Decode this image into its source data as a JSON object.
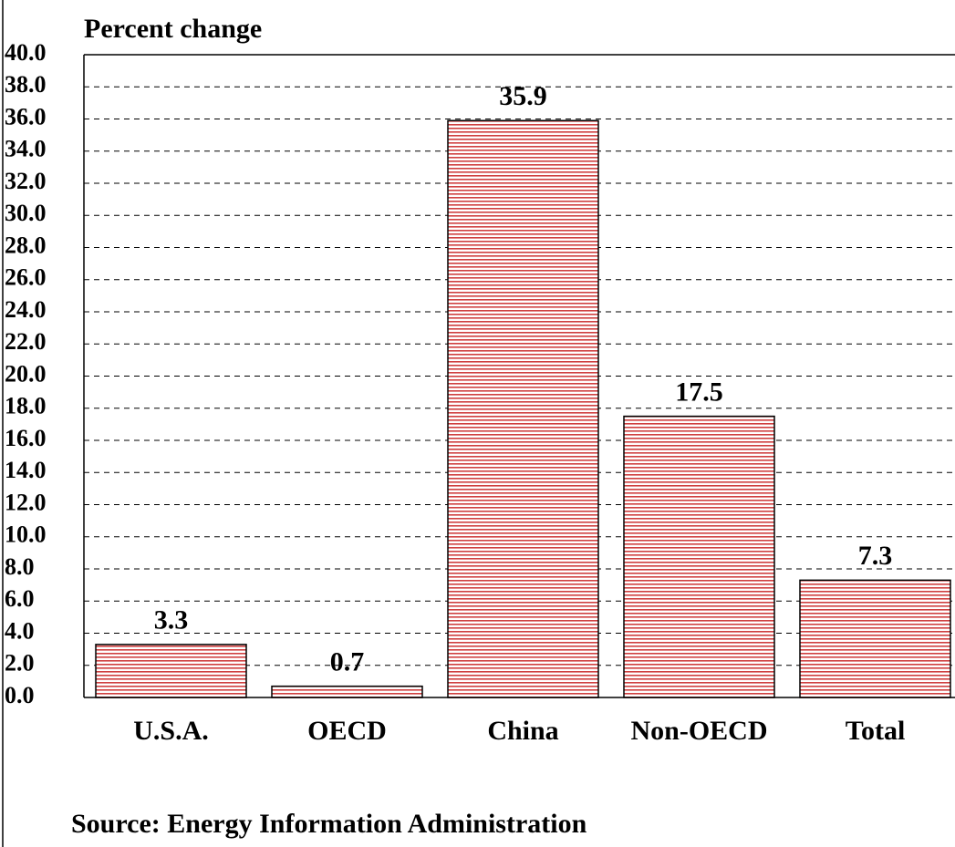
{
  "chart_data": {
    "type": "bar",
    "y_label": "Percent change",
    "source": "Source: Energy Information Administration",
    "categories": [
      "U.S.A.",
      "OECD",
      "China",
      "Non-OECD",
      "Total"
    ],
    "values": [
      3.3,
      0.7,
      35.9,
      17.5,
      7.3
    ],
    "color": "#d04040",
    "ylim": [
      0,
      40
    ],
    "yticks": [
      {
        "value": 0,
        "label": "0.0"
      },
      {
        "value": 2,
        "label": "2.0"
      },
      {
        "value": 4,
        "label": "4.0"
      },
      {
        "value": 6,
        "label": "6.0"
      },
      {
        "value": 8,
        "label": "8.0"
      },
      {
        "value": 10,
        "label": "10.0"
      },
      {
        "value": 12,
        "label": "12.0"
      },
      {
        "value": 14,
        "label": "14.0"
      },
      {
        "value": 16,
        "label": "16.0"
      },
      {
        "value": 18,
        "label": "18.0"
      },
      {
        "value": 20,
        "label": "20.0"
      },
      {
        "value": 22,
        "label": "22.0"
      },
      {
        "value": 24,
        "label": "24.0"
      },
      {
        "value": 26,
        "label": "26.0"
      },
      {
        "value": 28,
        "label": "28.0"
      },
      {
        "value": 30,
        "label": "30.0"
      },
      {
        "value": 32,
        "label": "32.0"
      },
      {
        "value": 34,
        "label": "34.0"
      },
      {
        "value": 36,
        "label": "36.0"
      },
      {
        "value": 38,
        "label": "38.0"
      },
      {
        "value": 40,
        "label": "40.0"
      }
    ],
    "grid": true
  }
}
